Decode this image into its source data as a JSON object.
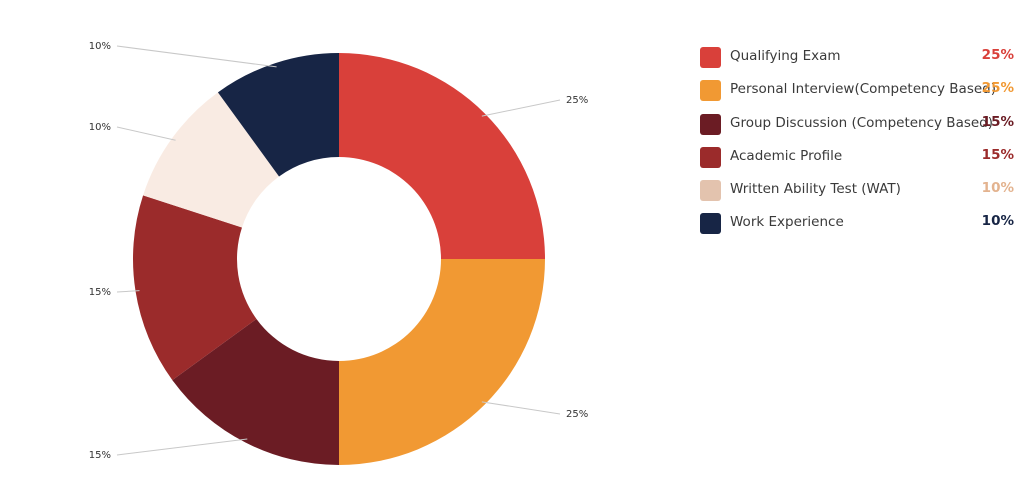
{
  "chart_data": {
    "type": "pie",
    "style": "donut",
    "title": "",
    "slices": [
      {
        "label": "Qualifying Exam",
        "value": 25,
        "value_label": "25%",
        "color": "#d9403a",
        "value_color": "#d9403a"
      },
      {
        "label": "Personal Interview(Competency Based)",
        "value": 25,
        "value_label": "25%",
        "color": "#f19933",
        "value_color": "#f19933"
      },
      {
        "label": "Group Discussion (Competency Based)",
        "value": 15,
        "value_label": "15%",
        "color": "#6b1c24",
        "value_color": "#6b1c24"
      },
      {
        "label": "Academic Profile",
        "value": 15,
        "value_label": "15%",
        "color": "#9b2b2b",
        "value_color": "#9b2b2b"
      },
      {
        "label": "Written Ability Test (WAT)",
        "value": 10,
        "value_label": "10%",
        "color": "#f9ebe3",
        "swatch_color": "#e3c3ae",
        "value_color": "#e3b38f"
      },
      {
        "label": "Work Experience",
        "value": 10,
        "value_label": "10%",
        "color": "#172545",
        "value_color": "#172545"
      }
    ],
    "legend_position": "right"
  }
}
